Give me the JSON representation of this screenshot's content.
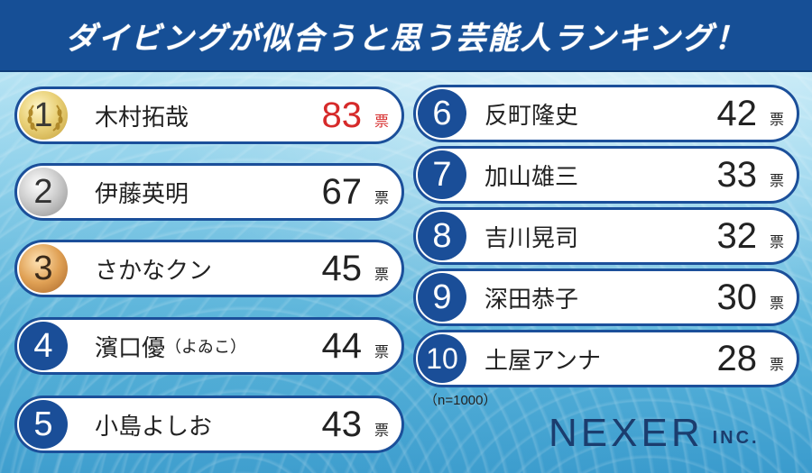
{
  "title": "ダイビングが似合うと思う芸能人ランキング！",
  "unit": "票",
  "sample_note": "（n=1000）",
  "logo": {
    "main": "NEXER",
    "sub": "INC."
  },
  "colors": {
    "navy": "#1a4e98",
    "accent_red": "#d62a2a"
  },
  "ranking": [
    {
      "rank": "1",
      "name": "木村拓哉",
      "votes": "83",
      "medal": "gold"
    },
    {
      "rank": "2",
      "name": "伊藤英明",
      "votes": "67",
      "medal": "silver"
    },
    {
      "rank": "3",
      "name": "さかなクン",
      "votes": "45",
      "medal": "bronze"
    },
    {
      "rank": "4",
      "name": "濱口優",
      "name_note": "（よゐこ）",
      "votes": "44"
    },
    {
      "rank": "5",
      "name": "小島よしお",
      "votes": "43"
    },
    {
      "rank": "6",
      "name": "反町隆史",
      "votes": "42"
    },
    {
      "rank": "7",
      "name": "加山雄三",
      "votes": "33"
    },
    {
      "rank": "8",
      "name": "吉川晃司",
      "votes": "32"
    },
    {
      "rank": "9",
      "name": "深田恭子",
      "votes": "30"
    },
    {
      "rank": "10",
      "name": "土屋アンナ",
      "votes": "28"
    }
  ]
}
